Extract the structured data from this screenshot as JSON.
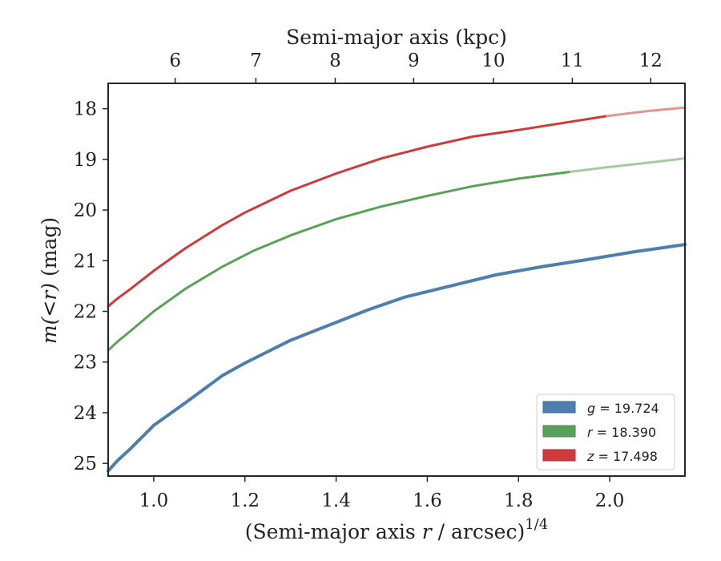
{
  "chart_data": {
    "type": "line",
    "title": "",
    "xlabel": {
      "pre": "(Semi-major axis ",
      "var": "r",
      "post": " / arcsec)",
      "sup": "1/4"
    },
    "ylabel": {
      "var": "m(<r)",
      "post": " (mag)"
    },
    "top_xlabel": "Semi-major axis (kpc)",
    "xlim": [
      0.9,
      2.165
    ],
    "ylim": [
      25.25,
      17.5
    ],
    "y_inverted": true,
    "grid": false,
    "legend_position": "lower-right",
    "x_ticks": [
      "1.0",
      "1.2",
      "1.4",
      "1.6",
      "1.8",
      "2.0"
    ],
    "y_ticks": [
      "18",
      "19",
      "20",
      "21",
      "22",
      "23",
      "24",
      "25"
    ],
    "top_ticks": [
      {
        "label": "6",
        "x": 0.9945
      },
      {
        "label": "7",
        "x": 1.0879
      },
      {
        "label": "8",
        "x": 1.1626
      },
      {
        "label": "9",
        "x": 1.2585
      },
      {
        "label": "10",
        "x": 1.3516
      },
      {
        "label": "11",
        "x": 1.4411
      },
      {
        "label": "12",
        "x": 1.5282
      }
    ],
    "series": [
      {
        "name": "g = 19.724",
        "band": "g",
        "mag": "19.724",
        "color": "#4c7fae",
        "width": 4,
        "x": [
          0.9,
          0.92,
          0.95,
          1.0,
          1.07,
          1.15,
          1.2,
          1.3,
          1.47,
          1.55,
          1.65,
          1.75,
          1.85,
          1.95,
          2.05,
          2.165
        ],
        "y": [
          25.15,
          24.95,
          24.7,
          24.25,
          23.8,
          23.27,
          23.02,
          22.57,
          21.97,
          21.72,
          21.5,
          21.28,
          21.12,
          20.98,
          20.83,
          20.68
        ],
        "faded_from": null
      },
      {
        "name": "r = 18.390",
        "band": "r",
        "mag": "18.390",
        "color": "#57a257",
        "width": 3,
        "x": [
          0.9,
          0.92,
          0.95,
          1.0,
          1.07,
          1.15,
          1.22,
          1.3,
          1.4,
          1.5,
          1.6,
          1.7,
          1.8,
          1.91,
          2.0,
          2.1,
          2.165
        ],
        "y": [
          22.77,
          22.6,
          22.38,
          22.0,
          21.55,
          21.12,
          20.8,
          20.5,
          20.18,
          19.93,
          19.72,
          19.53,
          19.38,
          19.25,
          19.15,
          19.05,
          18.98
        ],
        "faded_from": 1.91
      },
      {
        "name": "z = 17.498",
        "band": "z",
        "mag": "17.498",
        "color": "#cf3a3a",
        "width": 3,
        "x": [
          0.9,
          0.92,
          0.95,
          1.0,
          1.07,
          1.15,
          1.2,
          1.3,
          1.4,
          1.5,
          1.6,
          1.7,
          1.8,
          1.99,
          2.08,
          2.165
        ],
        "y": [
          21.9,
          21.75,
          21.55,
          21.2,
          20.75,
          20.3,
          20.05,
          19.62,
          19.28,
          18.98,
          18.75,
          18.55,
          18.42,
          18.15,
          18.05,
          17.98
        ],
        "faded_from": 1.99
      }
    ]
  }
}
